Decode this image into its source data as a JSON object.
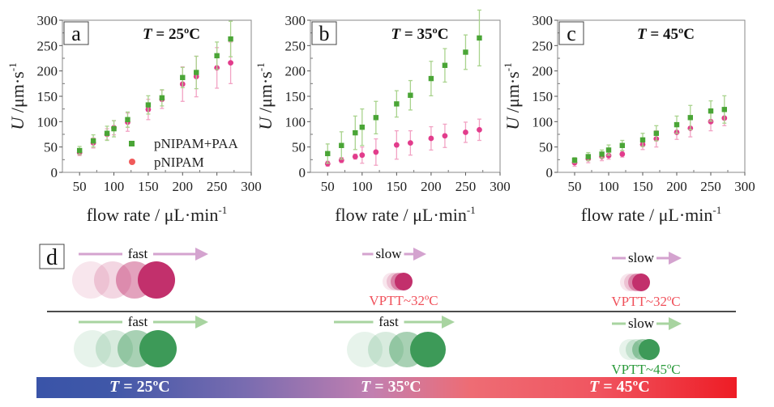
{
  "colors": {
    "green": "#4aa536",
    "green_err": "#a9d38d",
    "pink": "#e23c8c",
    "pink_err": "#f2a3c4",
    "legend_pink": "#f05a5a",
    "vptt_pink": "#f0505a",
    "vptt_green": "#2a9a3a"
  },
  "chart_data": [
    {
      "type": "scatter",
      "panel": "a",
      "title": "T = 25ºC",
      "title_var": "T",
      "title_rest": " = 25ºC",
      "xlabel": "flow rate / μL·min",
      "xlabel_sup": "-1",
      "ylabel_var": "U",
      "ylabel_rest": " /μm·s",
      "ylabel_sup": "-1",
      "xlim": [
        25,
        300
      ],
      "ylim": [
        0,
        300
      ],
      "xticks": [
        50,
        100,
        150,
        200,
        250,
        300
      ],
      "yticks": [
        0,
        50,
        100,
        150,
        200,
        250,
        300
      ],
      "legend": {
        "placement": "lower-right",
        "entries": [
          "pNIPAM+PAA",
          "pNIPAM"
        ]
      },
      "x": [
        50,
        70,
        90,
        100,
        120,
        150,
        170,
        200,
        220,
        250,
        270
      ],
      "series": [
        {
          "name": "pNIPAM+PAA",
          "values": [
            43,
            62,
            77,
            86,
            104,
            133,
            147,
            187,
            197,
            230,
            263
          ],
          "errors": [
            8,
            12,
            14,
            16,
            15,
            18,
            16,
            20,
            32,
            27,
            35
          ]
        },
        {
          "name": "pNIPAM",
          "values": [
            39,
            58,
            75,
            88,
            99,
            124,
            144,
            174,
            189,
            206,
            216
          ],
          "errors": [
            6,
            10,
            11,
            14,
            18,
            20,
            18,
            34,
            40,
            40,
            41
          ]
        }
      ]
    },
    {
      "type": "scatter",
      "panel": "b",
      "title": "T = 35ºC",
      "title_var": "T",
      "title_rest": " = 35ºC",
      "xlabel": "flow rate / μL·min",
      "xlabel_sup": "-1",
      "ylabel_var": "U",
      "ylabel_rest": " /μm·s",
      "ylabel_sup": "-1",
      "xlim": [
        25,
        300
      ],
      "ylim": [
        0,
        300
      ],
      "xticks": [
        50,
        100,
        150,
        200,
        250,
        300
      ],
      "yticks": [
        0,
        50,
        100,
        150,
        200,
        250,
        300
      ],
      "x": [
        50,
        70,
        90,
        100,
        120,
        150,
        170,
        200,
        220,
        250,
        270
      ],
      "series": [
        {
          "name": "pNIPAM+PAA",
          "values": [
            37,
            53,
            78,
            89,
            108,
            135,
            152,
            185,
            211,
            237,
            265
          ],
          "errors": [
            19,
            27,
            33,
            36,
            32,
            26,
            29,
            34,
            33,
            34,
            55
          ]
        },
        {
          "name": "pNIPAM",
          "values": [
            17,
            24,
            31,
            34,
            40,
            54,
            58,
            67,
            72,
            79,
            84
          ],
          "errors": [
            5,
            5,
            5,
            16,
            26,
            28,
            24,
            23,
            23,
            20,
            21
          ]
        }
      ]
    },
    {
      "type": "scatter",
      "panel": "c",
      "title": "T = 45ºC",
      "title_var": "T",
      "title_rest": " = 45ºC",
      "xlabel": "flow rate / μL·min",
      "xlabel_sup": "-1",
      "ylabel_var": "U",
      "ylabel_rest": " /μm·s",
      "ylabel_sup": "-1",
      "xlim": [
        25,
        300
      ],
      "ylim": [
        0,
        300
      ],
      "xticks": [
        50,
        100,
        150,
        200,
        250,
        300
      ],
      "yticks": [
        0,
        50,
        100,
        150,
        200,
        250,
        300
      ],
      "x": [
        50,
        70,
        90,
        100,
        120,
        150,
        170,
        200,
        220,
        250,
        270
      ],
      "series": [
        {
          "name": "pNIPAM+PAA",
          "values": [
            24,
            31,
            36,
            44,
            53,
            64,
            77,
            94,
            108,
            121,
            124
          ],
          "errors": [
            5,
            8,
            8,
            10,
            10,
            13,
            15,
            17,
            24,
            20,
            27
          ]
        },
        {
          "name": "pNIPAM",
          "values": [
            19,
            27,
            31,
            33,
            36,
            55,
            66,
            79,
            87,
            100,
            107
          ],
          "errors": [
            7,
            8,
            8,
            7,
            6,
            10,
            16,
            14,
            17,
            18,
            15
          ]
        }
      ]
    }
  ],
  "schematic": {
    "panel": "d",
    "top_row": [
      {
        "label": "fast",
        "vptt": ""
      },
      {
        "label": "slow",
        "vptt": "VPTT~32ºC"
      },
      {
        "label": "slow",
        "vptt": "VPTT~32ºC"
      }
    ],
    "bottom_row": [
      {
        "label": "fast",
        "vptt": ""
      },
      {
        "label": "fast",
        "vptt": ""
      },
      {
        "label": "slow",
        "vptt": "VPTT~45ºC"
      }
    ],
    "temperature_bar": {
      "labels": [
        {
          "var": "T",
          "rest": " = 25ºC"
        },
        {
          "var": "T",
          "rest": " = 35ºC"
        },
        {
          "var": "T",
          "rest": " = 45ºC"
        }
      ],
      "gradient": [
        "#3a54a8",
        "#b07ab4",
        "#f06070",
        "#ee1c25"
      ]
    }
  }
}
